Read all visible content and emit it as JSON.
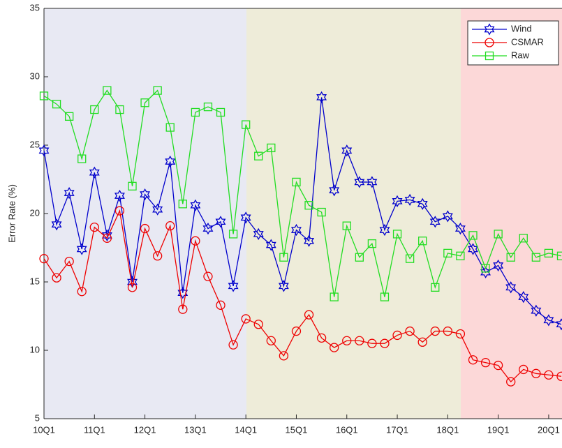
{
  "chart_data": {
    "type": "line",
    "y_label": "Error Rate (%)",
    "categories": [
      "10Q1",
      null,
      null,
      null,
      "11Q1",
      null,
      null,
      null,
      "12Q1",
      null,
      null,
      null,
      "13Q1",
      null,
      null,
      null,
      "14Q1",
      null,
      null,
      null,
      "15Q1",
      null,
      null,
      null,
      "16Q1",
      null,
      null,
      null,
      "17Q1",
      null,
      null,
      null,
      "18Q1",
      null,
      null,
      null,
      "19Q1",
      null,
      null,
      null,
      "20Q1",
      null
    ],
    "ylim": [
      5,
      35
    ],
    "yticks": [
      5,
      10,
      15,
      20,
      25,
      30,
      35
    ],
    "legend": "upper right",
    "series": [
      {
        "name": "Wind",
        "color": "#0000cc",
        "marker": "hexagram",
        "values": [
          24.6,
          19.2,
          21.5,
          17.4,
          23.0,
          18.4,
          21.3,
          15.0,
          21.4,
          20.3,
          23.8,
          14.2,
          20.6,
          18.9,
          19.4,
          14.7,
          19.7,
          18.5,
          17.7,
          14.7,
          18.8,
          18.0,
          28.5,
          21.7,
          24.6,
          22.3,
          22.3,
          18.8,
          20.9,
          21.0,
          20.7,
          19.4,
          19.8,
          18.9,
          17.4,
          15.7,
          16.2,
          14.6,
          13.9,
          12.9,
          12.2,
          11.9
        ]
      },
      {
        "name": "CSMAR",
        "color": "#ee0000",
        "marker": "circle",
        "values": [
          16.7,
          15.3,
          16.5,
          14.3,
          19.0,
          18.2,
          20.2,
          14.6,
          18.9,
          16.9,
          19.1,
          13.0,
          18.0,
          15.4,
          13.3,
          10.4,
          12.3,
          11.9,
          10.7,
          9.6,
          11.4,
          12.6,
          10.9,
          10.2,
          10.7,
          10.7,
          10.5,
          10.5,
          11.1,
          11.4,
          10.6,
          11.4,
          11.4,
          11.2,
          9.3,
          9.1,
          8.9,
          7.7,
          8.6,
          8.3,
          8.2,
          8.1
        ]
      },
      {
        "name": "Raw",
        "color": "#22dd22",
        "marker": "square",
        "values": [
          28.6,
          28.0,
          27.1,
          24.0,
          27.6,
          29.0,
          27.6,
          22.0,
          28.1,
          29.0,
          26.3,
          20.7,
          27.4,
          27.8,
          27.4,
          18.5,
          26.5,
          24.2,
          24.8,
          16.8,
          22.3,
          20.6,
          20.1,
          13.9,
          19.1,
          16.8,
          17.8,
          13.9,
          18.5,
          16.7,
          18.0,
          14.6,
          17.1,
          16.9,
          18.4,
          16.0,
          18.5,
          16.8,
          18.2,
          16.8,
          17.1,
          16.9
        ]
      }
    ]
  }
}
